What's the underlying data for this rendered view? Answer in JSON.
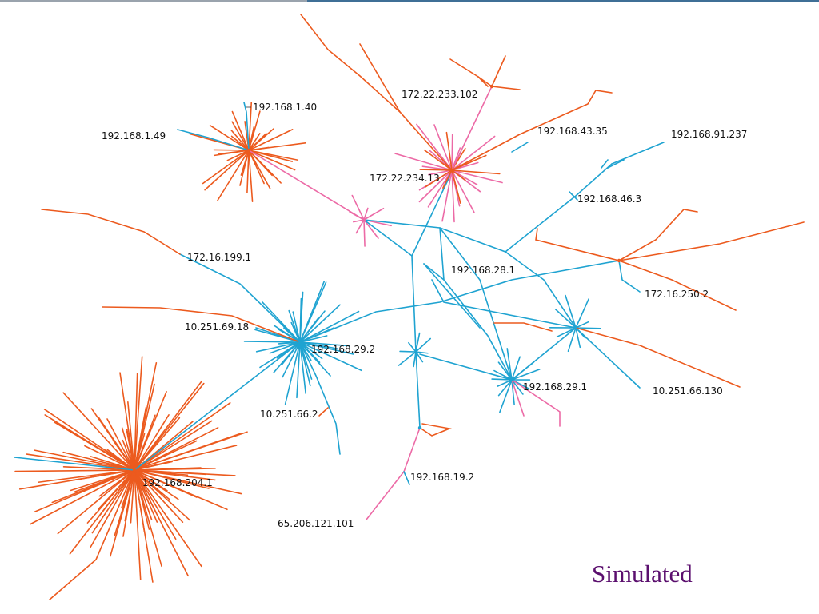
{
  "caption": "Simulated",
  "colors": {
    "blue": "#1fa3d1",
    "orange": "#ec5a1e",
    "pink": "#ec6aa6",
    "label": "#111111",
    "caption": "#5b0f6e",
    "topbar_left": "#9aa3ad",
    "topbar_right": "#3f6f96"
  },
  "nodes": [
    {
      "id": "n_192_168_1_40",
      "label": "192.168.1.40"
    },
    {
      "id": "n_192_168_1_49",
      "label": "192.168.1.49"
    },
    {
      "id": "n_172_22_233_102",
      "label": "172.22.233.102"
    },
    {
      "id": "n_192_168_43_35",
      "label": "192.168.43.35"
    },
    {
      "id": "n_172_22_234_13",
      "label": "172.22.234.13"
    },
    {
      "id": "n_192_168_91_237",
      "label": "192.168.91.237"
    },
    {
      "id": "n_192_168_46_3",
      "label": "192.168.46.3"
    },
    {
      "id": "n_172_16_199_1",
      "label": "172.16.199.1"
    },
    {
      "id": "n_192_168_28_1",
      "label": "192.168.28.1"
    },
    {
      "id": "n_172_16_250_2",
      "label": "172.16.250.2"
    },
    {
      "id": "n_10_251_69_18",
      "label": "10.251.69.18"
    },
    {
      "id": "n_192_168_29_2",
      "label": "192.168.29.2"
    },
    {
      "id": "n_192_168_29_1",
      "label": "192.168.29.1"
    },
    {
      "id": "n_10_251_66_130",
      "label": "10.251.66.130"
    },
    {
      "id": "n_10_251_66_2",
      "label": "10.251.66.2"
    },
    {
      "id": "n_192_168_204_1",
      "label": "192.168.204.1"
    },
    {
      "id": "n_192_168_19_2",
      "label": "192.168.19.2"
    },
    {
      "id": "n_65_206_121_101",
      "label": "65.206.121.101"
    }
  ]
}
